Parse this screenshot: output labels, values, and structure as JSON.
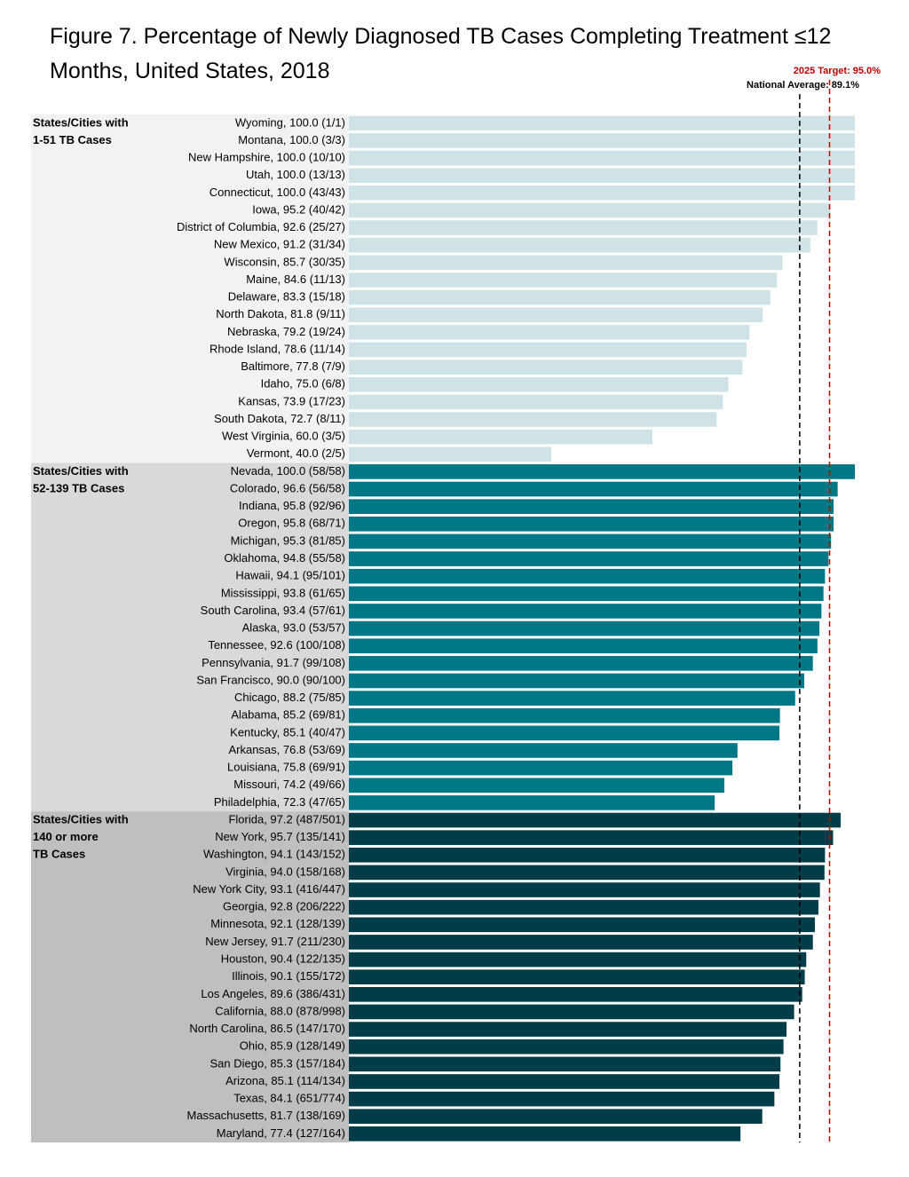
{
  "chart_data": {
    "type": "grouped-hbar",
    "title": "Figure 7. Percentage of Newly Diagnosed TB Cases Completing Treatment ≤12 Months, United States, 2018",
    "xlim": [
      0,
      100
    ],
    "reference_lines": [
      {
        "label": "2025 Target: 95.0%",
        "value": 95.0,
        "color": "#c00000"
      },
      {
        "label": "National Average: 89.1%",
        "value": 89.1,
        "color": "#000000"
      }
    ],
    "groups": [
      {
        "label": [
          "States/Cities with",
          "1-51 TB Cases"
        ],
        "color": "#cfe3e7",
        "background": "#f2f2f2",
        "categories": [
          "Wyoming, 100.0 (1/1)",
          "Montana, 100.0 (3/3)",
          "New Hampshire, 100.0 (10/10)",
          "Utah, 100.0 (13/13)",
          "Connecticut, 100.0 (43/43)",
          "Iowa, 95.2 (40/42)",
          "District of Columbia, 92.6 (25/27)",
          "New Mexico, 91.2 (31/34)",
          "Wisconsin, 85.7 (30/35)",
          "Maine, 84.6 (11/13)",
          "Delaware, 83.3 (15/18)",
          "North Dakota, 81.8 (9/11)",
          "Nebraska, 79.2 (19/24)",
          "Rhode Island, 78.6 (11/14)",
          "Baltimore, 77.8 (7/9)",
          "Idaho, 75.0 (6/8)",
          "Kansas, 73.9 (17/23)",
          "South Dakota, 72.7 (8/11)",
          "West Virginia, 60.0 (3/5)",
          "Vermont, 40.0 (2/5)"
        ],
        "values": [
          100.0,
          100.0,
          100.0,
          100.0,
          100.0,
          95.2,
          92.6,
          91.2,
          85.7,
          84.6,
          83.3,
          81.8,
          79.2,
          78.6,
          77.8,
          75.0,
          73.9,
          72.7,
          60.0,
          40.0
        ]
      },
      {
        "label": [
          "States/Cities with",
          "52-139 TB Cases"
        ],
        "color": "#007785",
        "background": "#d9d9d9",
        "categories": [
          "Nevada, 100.0 (58/58)",
          "Colorado, 96.6 (56/58)",
          "Indiana, 95.8 (92/96)",
          "Oregon, 95.8 (68/71)",
          "Michigan, 95.3 (81/85)",
          "Oklahoma, 94.8 (55/58)",
          "Hawaii, 94.1 (95/101)",
          "Mississippi, 93.8 (61/65)",
          "South Carolina, 93.4 (57/61)",
          "Alaska, 93.0 (53/57)",
          "Tennessee, 92.6 (100/108)",
          "Pennsylvania, 91.7 (99/108)",
          "San Francisco, 90.0 (90/100)",
          "Chicago, 88.2 (75/85)",
          "Alabama, 85.2 (69/81)",
          "Kentucky, 85.1 (40/47)",
          "Arkansas, 76.8 (53/69)",
          "Louisiana, 75.8 (69/91)",
          "Missouri, 74.2 (49/66)",
          "Philadelphia, 72.3 (47/65)"
        ],
        "values": [
          100.0,
          96.6,
          95.8,
          95.8,
          95.3,
          94.8,
          94.1,
          93.8,
          93.4,
          93.0,
          92.6,
          91.7,
          90.0,
          88.2,
          85.2,
          85.1,
          76.8,
          75.8,
          74.2,
          72.3
        ]
      },
      {
        "label": [
          "States/Cities with",
          "140 or more",
          "TB Cases"
        ],
        "color": "#013d48",
        "background": "#bfbfbf",
        "categories": [
          "Florida, 97.2 (487/501)",
          "New York, 95.7 (135/141)",
          "Washington, 94.1 (143/152)",
          "Virginia, 94.0 (158/168)",
          "New York City, 93.1 (416/447)",
          "Georgia, 92.8 (206/222)",
          "Minnesota, 92.1 (128/139)",
          "New Jersey, 91.7 (211/230)",
          "Houston, 90.4 (122/135)",
          "Illinois, 90.1 (155/172)",
          "Los Angeles, 89.6 (386/431)",
          "California, 88.0 (878/998)",
          "North Carolina, 86.5 (147/170)",
          "Ohio, 85.9 (128/149)",
          "San Diego, 85.3 (157/184)",
          "Arizona, 85.1 (114/134)",
          "Texas, 84.1 (651/774)",
          "Massachusetts, 81.7 (138/169)",
          "Maryland, 77.4 (127/164)"
        ],
        "values": [
          97.2,
          95.7,
          94.1,
          94.0,
          93.1,
          92.8,
          92.1,
          91.7,
          90.4,
          90.1,
          89.6,
          88.0,
          86.5,
          85.9,
          85.3,
          85.1,
          84.1,
          81.7,
          77.4
        ]
      }
    ]
  }
}
